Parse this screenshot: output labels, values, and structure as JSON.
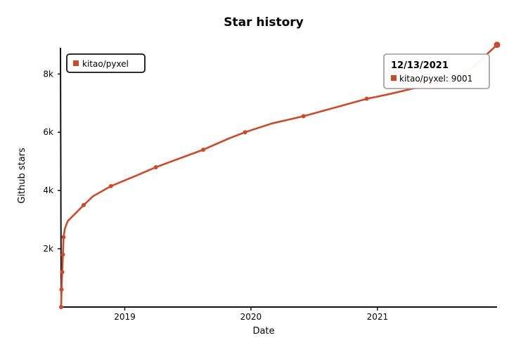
{
  "chart_data": {
    "type": "line",
    "title": "Star history",
    "xlabel": "Date",
    "ylabel": "Github stars",
    "x_ticks": [
      "2019",
      "2020",
      "2021"
    ],
    "y_ticks": [
      {
        "value": 2000,
        "label": "2k"
      },
      {
        "value": 4000,
        "label": "4k"
      },
      {
        "value": 6000,
        "label": "6k"
      },
      {
        "value": 8000,
        "label": "8k"
      }
    ],
    "xlim": [
      "2018-07-01",
      "2021-12-13"
    ],
    "ylim": [
      0,
      8900
    ],
    "grid": false,
    "legend_position": "top-left",
    "series": [
      {
        "name": "kitao/pyxel",
        "color": "#c94a2c",
        "points": [
          {
            "x": "2018-07-01",
            "y": 0
          },
          {
            "x": "2018-07-02",
            "y": 600
          },
          {
            "x": "2018-07-04",
            "y": 1200
          },
          {
            "x": "2018-07-06",
            "y": 1800
          },
          {
            "x": "2018-07-08",
            "y": 2400
          },
          {
            "x": "2018-07-12",
            "y": 2700
          },
          {
            "x": "2018-07-20",
            "y": 2950
          },
          {
            "x": "2018-08-10",
            "y": 3200
          },
          {
            "x": "2018-09-04",
            "y": 3500
          },
          {
            "x": "2018-10-01",
            "y": 3800
          },
          {
            "x": "2018-11-22",
            "y": 4150
          },
          {
            "x": "2019-02-01",
            "y": 4500
          },
          {
            "x": "2019-04-01",
            "y": 4800
          },
          {
            "x": "2019-07-01",
            "y": 5200
          },
          {
            "x": "2019-08-16",
            "y": 5400
          },
          {
            "x": "2019-11-01",
            "y": 5800
          },
          {
            "x": "2019-12-15",
            "y": 6000
          },
          {
            "x": "2020-03-01",
            "y": 6300
          },
          {
            "x": "2020-06-01",
            "y": 6550
          },
          {
            "x": "2020-09-01",
            "y": 6850
          },
          {
            "x": "2020-12-01",
            "y": 7150
          },
          {
            "x": "2021-02-01",
            "y": 7300
          },
          {
            "x": "2021-05-01",
            "y": 7550
          },
          {
            "x": "2021-08-01",
            "y": 7850
          },
          {
            "x": "2021-10-01",
            "y": 8200
          },
          {
            "x": "2021-12-13",
            "y": 9001
          }
        ],
        "markers": [
          "2018-07-01",
          "2018-07-02",
          "2018-07-04",
          "2018-07-06",
          "2018-07-08",
          "2018-09-04",
          "2018-11-22",
          "2019-04-01",
          "2019-08-16",
          "2019-12-15",
          "2020-06-01",
          "2020-12-01",
          "2021-12-13"
        ]
      }
    ],
    "tooltip": {
      "date": "12/13/2021",
      "series": "kitao/pyxel",
      "value": "9001",
      "text": "kitao/pyxel: 9001"
    }
  }
}
